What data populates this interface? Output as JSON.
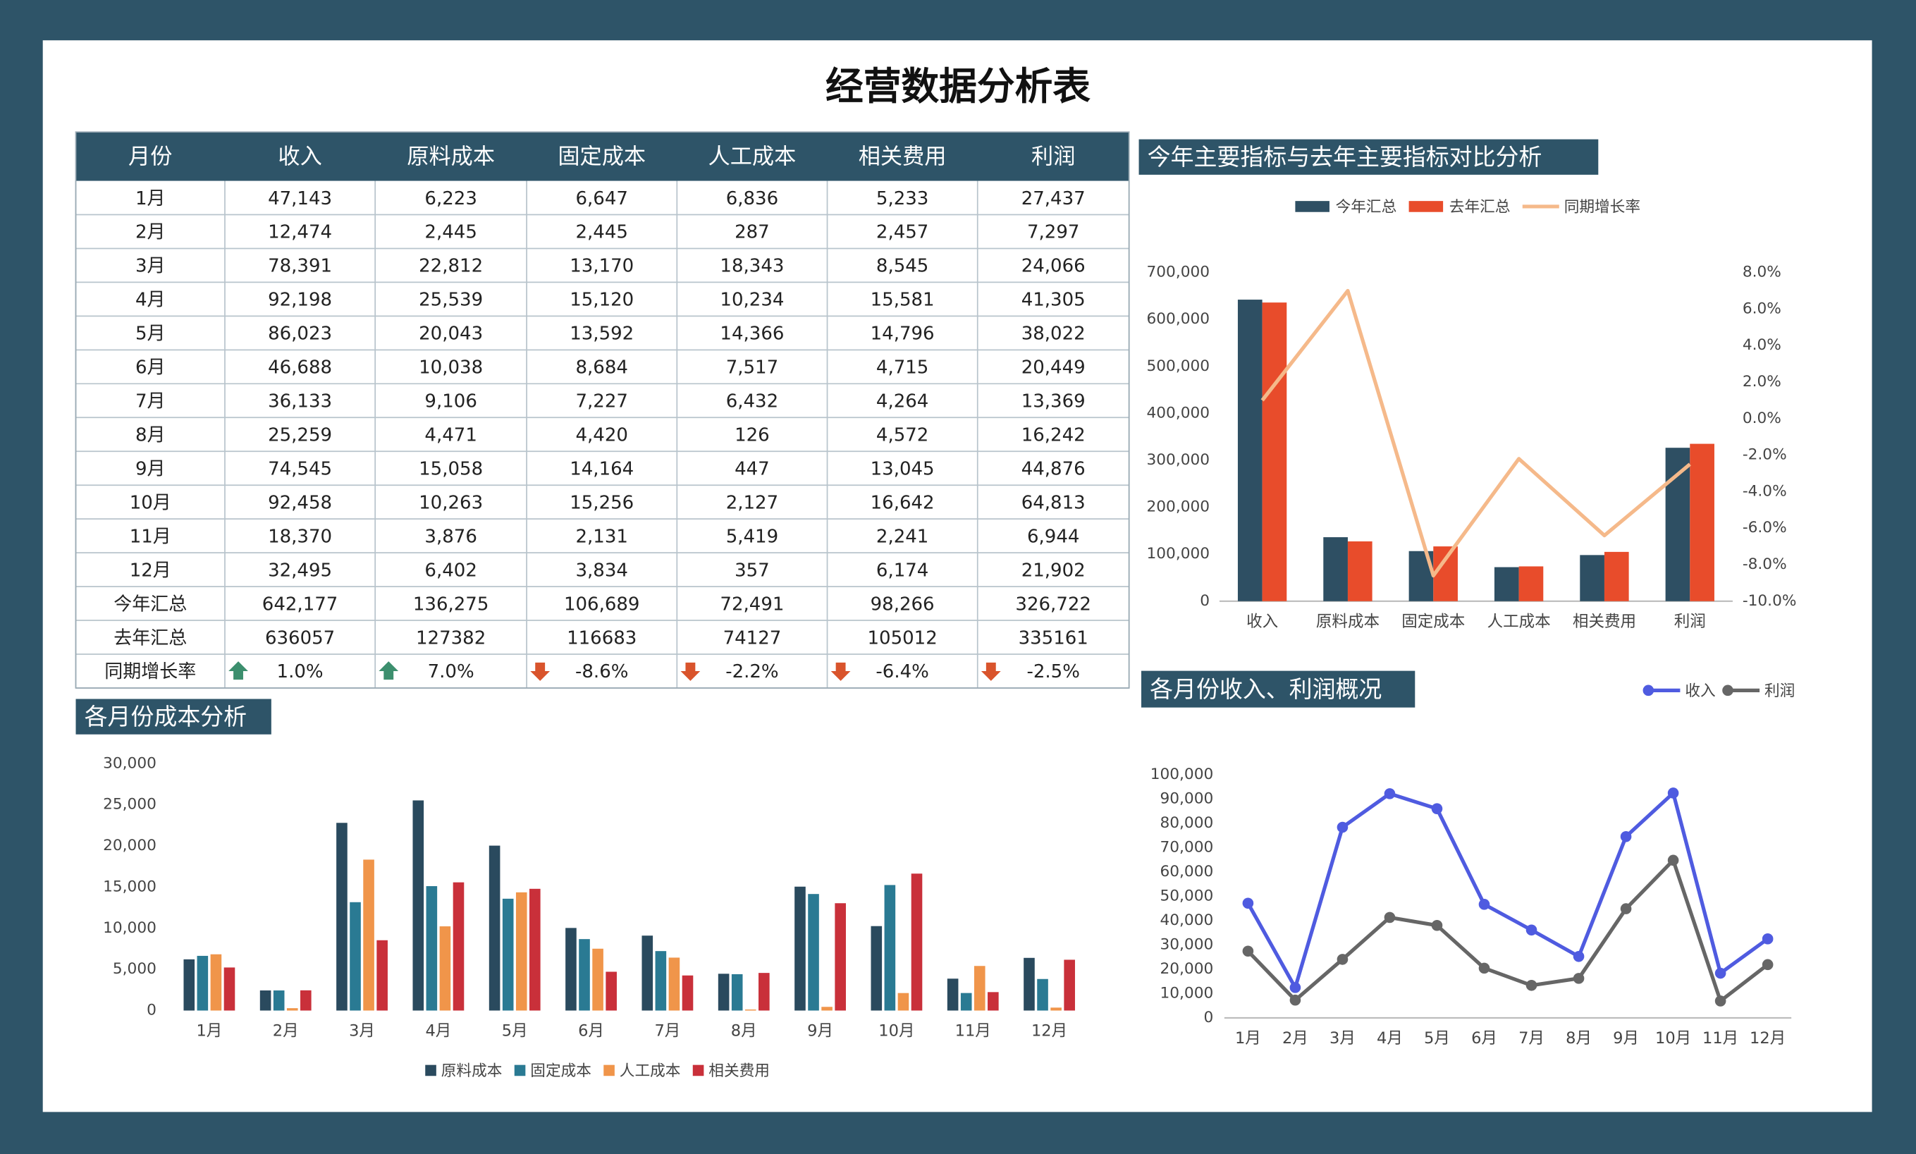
{
  "title": "经营数据分析表",
  "table": {
    "header": [
      "月份",
      "收入",
      "原料成本",
      "固定成本",
      "人工成本",
      "相关费用",
      "利润"
    ],
    "rows": [
      [
        "1月",
        "47,143",
        "6,223",
        "6,647",
        "6,836",
        "5,233",
        "27,437"
      ],
      [
        "2月",
        "12,474",
        "2,445",
        "2,445",
        "287",
        "2,457",
        "7,297"
      ],
      [
        "3月",
        "78,391",
        "22,812",
        "13,170",
        "18,343",
        "8,545",
        "24,066"
      ],
      [
        "4月",
        "92,198",
        "25,539",
        "15,120",
        "10,234",
        "15,581",
        "41,305"
      ],
      [
        "5月",
        "86,023",
        "20,043",
        "13,592",
        "14,366",
        "14,796",
        "38,022"
      ],
      [
        "6月",
        "46,688",
        "10,038",
        "8,684",
        "7,517",
        "4,715",
        "20,449"
      ],
      [
        "7月",
        "36,133",
        "9,106",
        "7,227",
        "6,432",
        "4,264",
        "13,369"
      ],
      [
        "8月",
        "25,259",
        "4,471",
        "4,420",
        "126",
        "4,572",
        "16,242"
      ],
      [
        "9月",
        "74,545",
        "15,058",
        "14,164",
        "447",
        "13,045",
        "44,876"
      ],
      [
        "10月",
        "92,458",
        "10,263",
        "15,256",
        "2,127",
        "16,642",
        "64,813"
      ],
      [
        "11月",
        "18,370",
        "3,876",
        "2,131",
        "5,419",
        "2,241",
        "6,944"
      ],
      [
        "12月",
        "32,495",
        "6,402",
        "3,834",
        "357",
        "6,174",
        "21,902"
      ],
      [
        "今年汇总",
        "642,177",
        "136,275",
        "106,689",
        "72,491",
        "98,266",
        "326,722"
      ],
      [
        "去年汇总",
        "636057",
        "127382",
        "116683",
        "74127",
        "105012",
        "335161"
      ],
      [
        "同期增长率",
        "1.0%",
        "7.0%",
        "-8.6%",
        "-2.2%",
        "-6.4%",
        "-2.5%"
      ]
    ]
  },
  "chart_data": [
    {
      "type": "combo",
      "title": "今年主要指标与去年主要指标对比分析",
      "legend": "top",
      "categories": [
        "收入",
        "原料成本",
        "固定成本",
        "人工成本",
        "相关费用",
        "利润"
      ],
      "series": [
        {
          "name": "今年汇总",
          "type": "bar",
          "color": "#2e4f63",
          "values": [
            642177,
            136275,
            106689,
            72491,
            98266,
            326722
          ]
        },
        {
          "name": "去年汇总",
          "type": "bar",
          "color": "#e84c2b",
          "values": [
            636057,
            127382,
            116683,
            74127,
            105012,
            335161
          ]
        },
        {
          "name": "同期增长率",
          "type": "line",
          "axis": "y2",
          "color": "#f5b98a",
          "values": [
            1.0,
            7.0,
            -8.6,
            -2.2,
            -6.4,
            -2.5
          ]
        }
      ],
      "ylim": [
        0,
        700000
      ],
      "yticks": [
        0,
        {
          "value": 100000,
          "label": "100,000"
        },
        {
          "value": 200000,
          "label": "200,000"
        },
        {
          "value": 300000,
          "label": "300,000"
        },
        {
          "value": 400000,
          "label": "400,000"
        },
        {
          "value": 500000,
          "label": "500,000"
        },
        {
          "value": 600000,
          "label": "600,000"
        },
        {
          "value": 700000,
          "label": "700,000"
        }
      ],
      "y2lim": [
        -10,
        8
      ],
      "y2ticks": [
        {
          "value": -10,
          "label": "-10.0%"
        },
        {
          "value": -8,
          "label": "-8.0%"
        },
        {
          "value": -6,
          "label": "-6.0%"
        },
        {
          "value": -4,
          "label": "-4.0%"
        },
        {
          "value": -2,
          "label": "-2.0%"
        },
        {
          "value": 0,
          "label": "0.0%"
        },
        {
          "value": 2,
          "label": "2.0%"
        },
        {
          "value": 4,
          "label": "4.0%"
        },
        {
          "value": 6,
          "label": "6.0%"
        },
        {
          "value": 8,
          "label": "8.0%"
        }
      ],
      "grid": false
    },
    {
      "type": "bar",
      "title": "各月份成本分析",
      "legend": "bottom",
      "categories": [
        "1月",
        "2月",
        "3月",
        "4月",
        "5月",
        "6月",
        "7月",
        "8月",
        "9月",
        "10月",
        "11月",
        "12月"
      ],
      "series": [
        {
          "name": "原料成本",
          "color": "#2a4a5e",
          "values": [
            6223,
            2445,
            22812,
            25539,
            20043,
            10038,
            9106,
            4471,
            15058,
            10263,
            3876,
            6402
          ]
        },
        {
          "name": "固定成本",
          "color": "#2a7a93",
          "values": [
            6647,
            2445,
            13170,
            15120,
            13592,
            8684,
            7227,
            4420,
            14164,
            15256,
            2131,
            3834
          ]
        },
        {
          "name": "人工成本",
          "color": "#f0954a",
          "values": [
            6836,
            287,
            18343,
            10234,
            14366,
            7517,
            6432,
            126,
            447,
            2127,
            5419,
            357
          ]
        },
        {
          "name": "相关费用",
          "color": "#c9303a",
          "values": [
            5233,
            2457,
            8545,
            15581,
            14796,
            4715,
            4264,
            4572,
            13045,
            16642,
            2241,
            6174
          ]
        }
      ],
      "ylim": [
        0,
        30000
      ],
      "yticks": [
        0,
        {
          "value": 5000,
          "label": "5,000"
        },
        {
          "value": 10000,
          "label": "10,000"
        },
        {
          "value": 15000,
          "label": "15,000"
        },
        {
          "value": 20000,
          "label": "20,000"
        },
        {
          "value": 25000,
          "label": "25,000"
        },
        {
          "value": 30000,
          "label": "30,000"
        }
      ],
      "grid": false
    },
    {
      "type": "line",
      "title": "各月份收入、利润概况",
      "legend": "top-right",
      "categories": [
        "1月",
        "2月",
        "3月",
        "4月",
        "5月",
        "6月",
        "7月",
        "8月",
        "9月",
        "10月",
        "11月",
        "12月"
      ],
      "series": [
        {
          "name": "收入",
          "color": "#4f5be0",
          "values": [
            47143,
            12474,
            78391,
            92198,
            86023,
            46688,
            36133,
            25259,
            74545,
            92458,
            18370,
            32495
          ]
        },
        {
          "name": "利润",
          "color": "#666666",
          "values": [
            27437,
            7297,
            24066,
            41305,
            38022,
            20449,
            13369,
            16242,
            44876,
            64813,
            6944,
            21902
          ]
        }
      ],
      "ylim": [
        0,
        100000
      ],
      "yticks": [
        0,
        {
          "value": 10000,
          "label": "10,000"
        },
        {
          "value": 20000,
          "label": "20,000"
        },
        {
          "value": 30000,
          "label": "30,000"
        },
        {
          "value": 40000,
          "label": "40,000"
        },
        {
          "value": 50000,
          "label": "50,000"
        },
        {
          "value": 60000,
          "label": "60,000"
        },
        {
          "value": 70000,
          "label": "70,000"
        },
        {
          "value": 80000,
          "label": "80,000"
        },
        {
          "value": 90000,
          "label": "90,000"
        },
        {
          "value": 100000,
          "label": "100,000"
        }
      ],
      "grid": false
    }
  ]
}
